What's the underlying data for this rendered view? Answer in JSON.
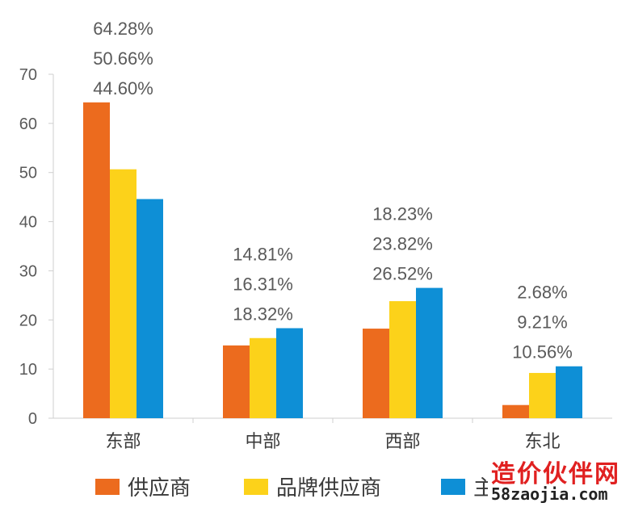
{
  "chart_data": {
    "type": "bar",
    "categories": [
      "东部",
      "中部",
      "西部",
      "东北"
    ],
    "series": [
      {
        "name": "供应商",
        "values": [
          64.28,
          14.81,
          18.23,
          2.68
        ],
        "color": "#ec6b1e"
      },
      {
        "name": "品牌供应商",
        "values": [
          50.66,
          16.31,
          23.82,
          9.21
        ],
        "color": "#fcd21a"
      },
      {
        "name": "主",
        "values": [
          44.6,
          18.32,
          26.52,
          10.56
        ],
        "color": "#0e8fd6"
      }
    ],
    "data_labels": [
      [
        "64.28%",
        "50.66%",
        "44.60%"
      ],
      [
        "14.81%",
        "16.31%",
        "18.32%"
      ],
      [
        "18.23%",
        "23.82%",
        "26.52%"
      ],
      [
        "2.68%",
        "9.21%",
        "10.56%"
      ]
    ],
    "yticks": [
      "0",
      "10",
      "20",
      "30",
      "40",
      "50",
      "60",
      "70"
    ],
    "ylim": [
      0,
      70
    ],
    "title": "",
    "xlabel": "",
    "ylabel": "",
    "grid": false,
    "legend_position": "bottom"
  },
  "watermark": {
    "text_cn": "造价伙伴网",
    "url": "58zaojia.com"
  }
}
